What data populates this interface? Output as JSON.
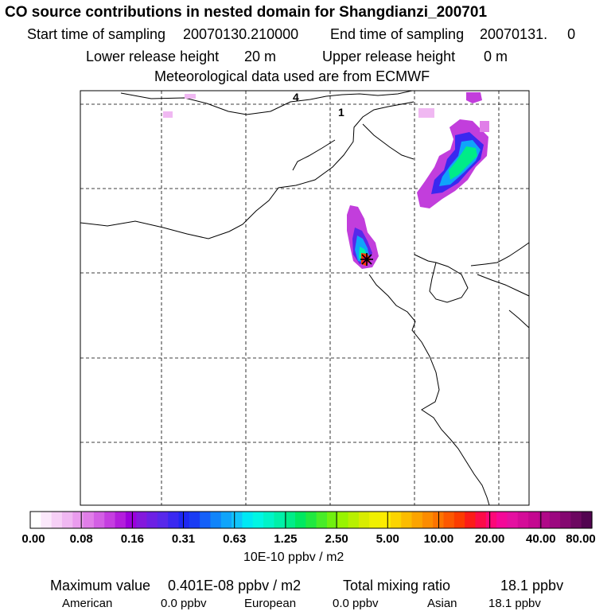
{
  "header": {
    "title": "CO  source contributions in nested domain for Shangdianzi_200701",
    "start_label": "Start time of sampling",
    "start_value": "20070130.210000",
    "end_label": "End time of sampling",
    "end_value": "20070131.     0",
    "lower_label": "Lower release height",
    "lower_value": "20 m",
    "upper_label": "Upper release height",
    "upper_value": "0 m",
    "met_text": "Meteorological data used are from ECMWF"
  },
  "map": {
    "region_labels": [
      "4",
      "1"
    ]
  },
  "colorbar": {
    "ticks": [
      "0.00",
      "0.08",
      "0.16",
      "0.31",
      "0.63",
      "1.25",
      "2.50",
      "5.00",
      "10.00",
      "20.00",
      "40.00",
      "80.00"
    ],
    "unit": "10E-10 ppbv / m2",
    "colors": [
      "#ffffff",
      "#fbe8fb",
      "#f6d0f6",
      "#f0b8f2",
      "#ea9cee",
      "#e07ee8",
      "#d35fe4",
      "#c53ee0",
      "#b31edc",
      "#9c00dc",
      "#8418dc",
      "#6d20e4",
      "#5828ea",
      "#3a28f0",
      "#1e28f2",
      "#1a3cf4",
      "#1460f8",
      "#1084fa",
      "#10a4fa",
      "#10c4fa",
      "#00e8f4",
      "#00f6e4",
      "#00f4c8",
      "#00f0a8",
      "#00ec88",
      "#00e860",
      "#20e840",
      "#48ec28",
      "#70f010",
      "#98f400",
      "#b8f000",
      "#d8ec00",
      "#f0f000",
      "#fcec00",
      "#fcd400",
      "#fcbc00",
      "#fca400",
      "#fc8c00",
      "#fc7400",
      "#fc5800",
      "#fc3c00",
      "#fc1c18",
      "#fc0c48",
      "#fc0878",
      "#f40898",
      "#e410a0",
      "#d40c98",
      "#c40890",
      "#b00888",
      "#9c0880",
      "#840870",
      "#6c0860",
      "#520450"
    ]
  },
  "footer": {
    "max_label": "Maximum value",
    "max_value": "0.401E-08 ppbv / m2",
    "total_label": "Total mixing ratio",
    "total_value": "18.1 ppbv",
    "american_label": "American",
    "american_value": "0.0 ppbv",
    "european_label": "European",
    "european_value": "0.0 ppbv",
    "asian_label": "Asian",
    "asian_value": "18.1 ppbv"
  }
}
